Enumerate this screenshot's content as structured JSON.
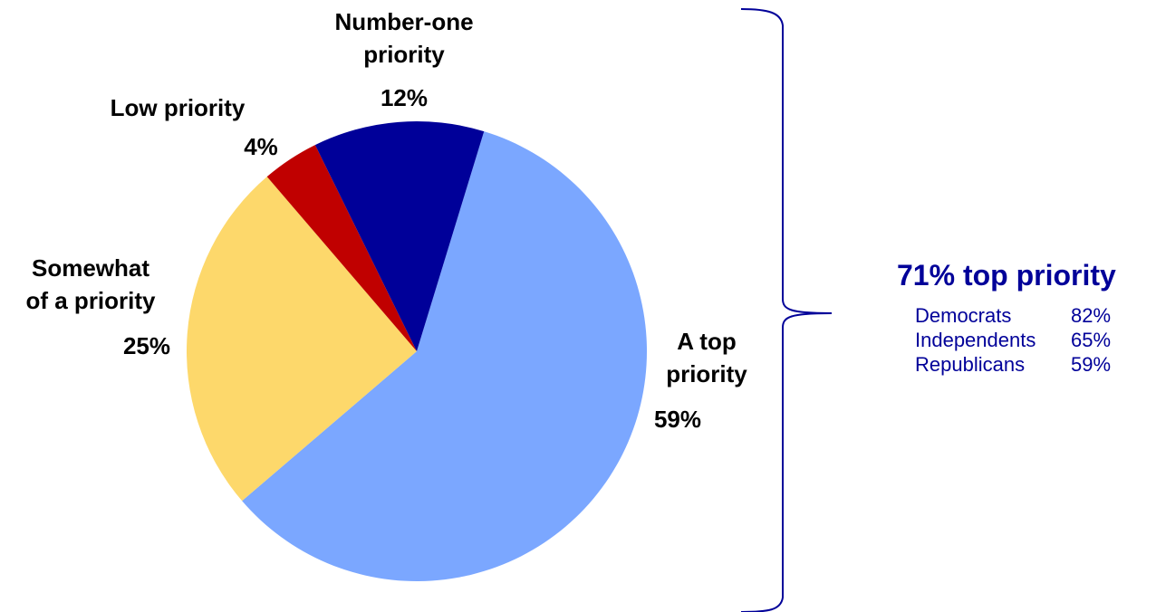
{
  "chart_data": {
    "type": "pie",
    "slices": [
      {
        "label_lines": [
          "A top",
          "priority"
        ],
        "value_label": "59%",
        "value": 59,
        "color": "#7BA7FF"
      },
      {
        "label_lines": [
          "Somewhat",
          "of a priority"
        ],
        "value_label": "25%",
        "value": 25,
        "color": "#FDD86B"
      },
      {
        "label_lines": [
          "Low priority"
        ],
        "value_label": "4%",
        "value": 4,
        "color": "#C00000"
      },
      {
        "label_lines": [
          "Number-one",
          "priority"
        ],
        "value_label": "12%",
        "value": 12,
        "color": "#000099"
      }
    ],
    "start_angle_deg": 17,
    "direction": "clockwise",
    "bracket": "A top priority + Number-one priority"
  },
  "summary": {
    "title": "71% top priority",
    "rows": [
      {
        "party": "Democrats",
        "value": "82%"
      },
      {
        "party": "Independents",
        "value": "65%"
      },
      {
        "party": "Republicans",
        "value": "59%"
      }
    ]
  },
  "colors": {
    "summary_text": "#000099",
    "bracket": "#000099",
    "label_text": "#000000"
  }
}
